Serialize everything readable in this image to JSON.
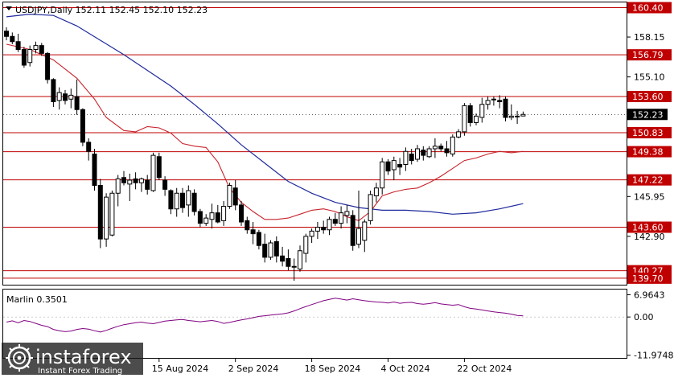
{
  "header": {
    "symbol_line": "USDJPY,Daily  152.11 152.45 152.10 152.23",
    "indicator_line": "Marlin 0.3501"
  },
  "logo": {
    "brand": "instaforex",
    "tagline": "Instant Forex Trading"
  },
  "colors": {
    "level_line": "#c00000",
    "level_label_bg": "#c00000",
    "ma_slow": "#1f2a9c",
    "ma_fast": "#c8222a",
    "oscillator": "#800080",
    "candle": "#000000",
    "current_price_bg": "#000000"
  },
  "chart_data": [
    {
      "type": "candlestick",
      "title": "USDJPY,Daily",
      "ohlc_last": {
        "open": 152.11,
        "high": 152.45,
        "low": 152.1,
        "close": 152.23
      },
      "y_ticks": [
        "158.15",
        "155.10",
        "145.95",
        "142.90"
      ],
      "ylim": [
        139.2,
        160.8
      ],
      "x_ticks": [
        "15 Aug 2024",
        "2 Sep 2024",
        "18 Sep 2024",
        "4 Oct 2024",
        "22 Oct 2024"
      ],
      "horizontal_levels": [
        {
          "value": 160.4,
          "label": "160.40"
        },
        {
          "value": 156.79,
          "label": "156.79"
        },
        {
          "value": 153.6,
          "label": "153.60"
        },
        {
          "value": 150.83,
          "label": "150.83"
        },
        {
          "value": 149.38,
          "label": "149.38"
        },
        {
          "value": 147.22,
          "label": "147.22"
        },
        {
          "value": 143.6,
          "label": "143.60"
        },
        {
          "value": 140.27,
          "label": "140.27"
        },
        {
          "value": 139.7,
          "label": "139.70"
        }
      ],
      "current_price": {
        "value": 152.23,
        "label": "152.23"
      },
      "candles": [
        [
          158.6,
          158.9,
          157.9,
          158.2
        ],
        [
          158.2,
          158.5,
          157.6,
          157.8
        ],
        [
          157.8,
          158.4,
          157.0,
          157.2
        ],
        [
          157.2,
          157.4,
          155.8,
          156.0
        ],
        [
          156.2,
          157.5,
          155.9,
          157.2
        ],
        [
          157.2,
          157.8,
          156.9,
          157.5
        ],
        [
          157.5,
          157.7,
          156.7,
          156.9
        ],
        [
          156.9,
          157.0,
          154.6,
          154.9
        ],
        [
          154.9,
          155.0,
          152.8,
          153.2
        ],
        [
          153.3,
          154.3,
          152.6,
          153.9
        ],
        [
          153.8,
          154.1,
          153.0,
          153.3
        ],
        [
          153.4,
          154.2,
          152.7,
          153.7
        ],
        [
          153.6,
          154.9,
          152.2,
          152.6
        ],
        [
          152.6,
          152.7,
          149.8,
          150.1
        ],
        [
          150.1,
          150.4,
          148.7,
          149.4
        ],
        [
          149.2,
          149.6,
          146.4,
          146.8
        ],
        [
          146.8,
          147.3,
          142.0,
          142.7
        ],
        [
          142.7,
          146.2,
          142.1,
          145.9
        ],
        [
          143.0,
          146.4,
          142.9,
          146.2
        ],
        [
          146.2,
          147.6,
          145.2,
          147.3
        ],
        [
          147.4,
          147.9,
          146.8,
          147.0
        ],
        [
          146.9,
          147.7,
          145.6,
          147.2
        ],
        [
          147.3,
          147.8,
          146.5,
          147.0
        ],
        [
          147.0,
          147.4,
          146.3,
          147.3
        ],
        [
          147.2,
          147.6,
          146.1,
          146.5
        ],
        [
          146.4,
          149.3,
          146.3,
          149.1
        ],
        [
          149.0,
          149.3,
          147.2,
          147.4
        ],
        [
          147.2,
          147.5,
          146.0,
          146.5
        ],
        [
          146.4,
          146.5,
          144.6,
          145.0
        ],
        [
          145.0,
          146.6,
          144.4,
          146.2
        ],
        [
          146.2,
          146.6,
          144.7,
          145.1
        ],
        [
          145.3,
          146.8,
          144.4,
          146.4
        ],
        [
          146.2,
          146.5,
          144.5,
          144.8
        ],
        [
          144.8,
          145.0,
          143.6,
          143.9
        ],
        [
          143.9,
          144.6,
          143.7,
          144.3
        ],
        [
          144.2,
          145.4,
          143.5,
          144.7
        ],
        [
          144.7,
          145.3,
          143.9,
          144.0
        ],
        [
          144.1,
          145.6,
          143.7,
          145.2
        ],
        [
          145.2,
          147.0,
          145.0,
          146.8
        ],
        [
          146.6,
          147.2,
          144.9,
          145.3
        ],
        [
          145.3,
          145.6,
          143.7,
          144.0
        ],
        [
          144.1,
          144.4,
          143.1,
          143.4
        ],
        [
          143.4,
          144.0,
          142.3,
          143.1
        ],
        [
          143.2,
          143.4,
          141.9,
          142.2
        ],
        [
          142.3,
          143.1,
          140.9,
          141.3
        ],
        [
          141.3,
          142.6,
          141.1,
          142.4
        ],
        [
          142.5,
          142.9,
          140.9,
          141.4
        ],
        [
          141.4,
          142.1,
          140.6,
          141.0
        ],
        [
          141.2,
          141.9,
          140.3,
          140.6
        ],
        [
          140.6,
          141.2,
          139.5,
          140.6
        ],
        [
          140.4,
          142.2,
          140.2,
          141.8
        ],
        [
          141.6,
          143.1,
          140.9,
          142.9
        ],
        [
          142.9,
          143.5,
          142.4,
          143.3
        ],
        [
          143.3,
          144.0,
          142.7,
          143.6
        ],
        [
          143.6,
          144.1,
          143.1,
          143.4
        ],
        [
          143.4,
          144.4,
          143.0,
          144.2
        ],
        [
          144.2,
          144.7,
          143.7,
          143.9
        ],
        [
          143.9,
          145.2,
          143.5,
          144.7
        ],
        [
          144.5,
          145.3,
          143.9,
          144.8
        ],
        [
          144.5,
          144.9,
          141.8,
          142.2
        ],
        [
          142.3,
          146.4,
          142.0,
          143.5
        ],
        [
          142.6,
          144.2,
          141.7,
          144.0
        ],
        [
          144.1,
          146.4,
          143.8,
          146.1
        ],
        [
          146.0,
          147.0,
          145.5,
          146.6
        ],
        [
          146.6,
          148.9,
          146.1,
          148.6
        ],
        [
          148.6,
          148.8,
          147.6,
          147.9
        ],
        [
          148.0,
          149.0,
          147.2,
          148.7
        ],
        [
          148.4,
          148.9,
          147.6,
          148.2
        ],
        [
          148.4,
          149.7,
          147.9,
          149.4
        ],
        [
          149.2,
          149.6,
          148.4,
          148.7
        ],
        [
          148.8,
          149.9,
          148.6,
          149.6
        ],
        [
          149.5,
          149.8,
          148.7,
          149.1
        ],
        [
          149.0,
          149.8,
          148.9,
          149.6
        ],
        [
          149.6,
          150.4,
          148.9,
          149.8
        ],
        [
          149.8,
          150.0,
          149.4,
          149.6
        ],
        [
          149.6,
          150.2,
          149.0,
          149.3
        ],
        [
          149.2,
          150.7,
          149.0,
          150.5
        ],
        [
          150.5,
          151.1,
          150.4,
          150.9
        ],
        [
          150.9,
          153.1,
          150.6,
          152.9
        ],
        [
          152.9,
          153.1,
          151.3,
          151.6
        ],
        [
          151.6,
          152.3,
          151.4,
          152.1
        ],
        [
          152.0,
          153.5,
          151.6,
          153.0
        ],
        [
          153.0,
          153.6,
          152.6,
          153.3
        ],
        [
          153.4,
          153.6,
          152.9,
          153.4
        ],
        [
          153.3,
          153.7,
          152.7,
          153.2
        ],
        [
          153.4,
          153.6,
          151.7,
          152.0
        ],
        [
          152.0,
          153.0,
          151.8,
          152.1
        ],
        [
          152.1,
          152.5,
          151.5,
          152.1
        ],
        [
          152.11,
          152.45,
          152.1,
          152.23
        ]
      ],
      "ma_fast": [
        [
          0,
          157.6
        ],
        [
          4,
          157.2
        ],
        [
          8,
          156.4
        ],
        [
          12,
          155.0
        ],
        [
          15,
          153.4
        ],
        [
          17,
          152.0
        ],
        [
          20,
          151.0
        ],
        [
          22,
          150.9
        ],
        [
          24,
          151.3
        ],
        [
          26,
          151.2
        ],
        [
          28,
          150.8
        ],
        [
          30,
          150.0
        ],
        [
          32,
          149.8
        ],
        [
          34,
          149.7
        ],
        [
          36,
          148.6
        ],
        [
          38,
          146.6
        ],
        [
          40,
          145.5
        ],
        [
          42,
          144.8
        ],
        [
          44,
          144.2
        ],
        [
          46,
          144.2
        ],
        [
          48,
          144.3
        ],
        [
          50,
          144.6
        ],
        [
          52,
          144.9
        ],
        [
          54,
          145.0
        ],
        [
          56,
          144.8
        ],
        [
          58,
          144.4
        ],
        [
          60,
          144.1
        ],
        [
          62,
          144.8
        ],
        [
          64,
          146.0
        ],
        [
          66,
          146.3
        ],
        [
          68,
          146.5
        ],
        [
          70,
          146.6
        ],
        [
          72,
          147.0
        ],
        [
          74,
          147.5
        ],
        [
          76,
          148.1
        ],
        [
          78,
          148.7
        ],
        [
          80,
          148.9
        ],
        [
          82,
          149.2
        ],
        [
          84,
          149.4
        ],
        [
          86,
          149.3
        ],
        [
          88,
          149.4
        ]
      ],
      "ma_slow": [
        [
          0,
          159.7
        ],
        [
          4,
          159.9
        ],
        [
          8,
          159.8
        ],
        [
          12,
          159.0
        ],
        [
          16,
          157.9
        ],
        [
          20,
          156.8
        ],
        [
          24,
          155.6
        ],
        [
          28,
          154.4
        ],
        [
          32,
          153.0
        ],
        [
          36,
          151.5
        ],
        [
          40,
          149.9
        ],
        [
          44,
          148.5
        ],
        [
          48,
          147.1
        ],
        [
          52,
          146.2
        ],
        [
          56,
          145.5
        ],
        [
          60,
          145.1
        ],
        [
          64,
          144.9
        ],
        [
          68,
          144.9
        ],
        [
          72,
          144.8
        ],
        [
          76,
          144.6
        ],
        [
          80,
          144.7
        ],
        [
          84,
          145.0
        ],
        [
          88,
          145.4
        ]
      ]
    },
    {
      "type": "line",
      "title": "Marlin 0.3501",
      "series": [
        {
          "name": "Marlin",
          "values": [
            -1.6,
            -1.2,
            -1.8,
            -1.1,
            -1.4,
            -2.0,
            -2.6,
            -3.0,
            -3.9,
            -4.3,
            -4.6,
            -4.4,
            -3.9,
            -3.6,
            -3.8,
            -4.3,
            -4.7,
            -4.2,
            -3.5,
            -2.9,
            -2.4,
            -2.1,
            -1.8,
            -1.6,
            -1.9,
            -2.1,
            -1.7,
            -1.3,
            -1.1,
            -0.9,
            -0.8,
            -1.1,
            -1.3,
            -1.5,
            -1.3,
            -1.1,
            -1.4,
            -2.0,
            -1.7,
            -1.3,
            -0.9,
            -0.6,
            -0.2,
            0.2,
            0.4,
            0.6,
            0.8,
            1.0,
            1.3,
            1.9,
            2.6,
            3.3,
            3.9,
            4.5,
            5.1,
            5.5,
            5.9,
            5.6,
            5.3,
            5.7,
            5.4,
            5.1,
            4.9,
            4.7,
            4.6,
            4.4,
            4.7,
            4.3,
            4.5,
            4.6,
            4.2,
            4.0,
            4.2,
            4.5,
            4.1,
            3.9,
            3.7,
            3.9,
            3.2,
            2.7,
            2.5,
            2.2,
            1.9,
            1.6,
            1.4,
            1.2,
            0.9,
            0.5,
            0.3501
          ]
        }
      ],
      "y_ticks": [
        "6.9643",
        "0.00",
        "-11.9748"
      ],
      "ylim": [
        -12.8,
        8.6
      ]
    }
  ]
}
